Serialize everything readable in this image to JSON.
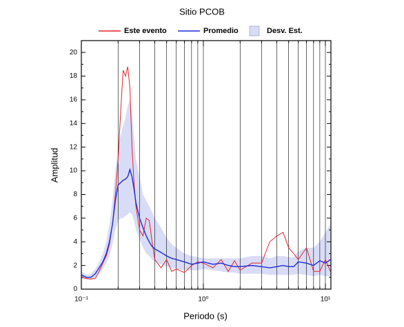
{
  "chart_data": {
    "type": "line",
    "title": "Sitio PCOB",
    "xlabel": "Periodo (s)",
    "ylabel": "Amplitud",
    "xscale": "log",
    "grid": true,
    "legend": "top",
    "xlim": [
      0.1,
      11.1
    ],
    "ylim": [
      0,
      21
    ],
    "xticks": [
      {
        "value": 0.1,
        "label": "10⁻¹"
      },
      {
        "value": 1,
        "label": "10⁰"
      },
      {
        "value": 10,
        "label": "10¹"
      }
    ],
    "xminor_ticks": [
      0.2,
      0.3,
      0.4,
      0.5,
      0.6,
      0.7,
      0.8,
      0.9,
      2,
      3,
      4,
      5,
      6,
      7,
      8,
      9
    ],
    "yticks": [
      0,
      2,
      4,
      6,
      8,
      10,
      12,
      14,
      16,
      18,
      20
    ],
    "yminor_ticks": [
      1,
      3,
      5,
      7,
      9,
      11,
      13,
      15,
      17,
      19
    ],
    "x": [
      0.1,
      0.11,
      0.12,
      0.13,
      0.14,
      0.15,
      0.16,
      0.17,
      0.18,
      0.19,
      0.2,
      0.21,
      0.22,
      0.23,
      0.24,
      0.25,
      0.26,
      0.27,
      0.28,
      0.3,
      0.32,
      0.34,
      0.36,
      0.38,
      0.4,
      0.45,
      0.5,
      0.55,
      0.6,
      0.7,
      0.8,
      0.9,
      1.0,
      1.2,
      1.4,
      1.6,
      1.8,
      2,
      2.5,
      3,
      3.5,
      4,
      4.5,
      5,
      5.5,
      6,
      7,
      8,
      9,
      10,
      11
    ],
    "band": {
      "name": "Desv. Est.",
      "color": "#d9dcf6",
      "upper": [
        1.5,
        1.2,
        1.3,
        1.7,
        2.3,
        3,
        4,
        5.5,
        7.5,
        10,
        12,
        13,
        13.8,
        14.5,
        15.5,
        16,
        15,
        13,
        11,
        9.5,
        8,
        7.5,
        7,
        6.5,
        6,
        5.2,
        4.3,
        3.8,
        3.5,
        3.0,
        2.8,
        2.7,
        2.6,
        2.6,
        2.6,
        2.6,
        2.6,
        2.6,
        2.8,
        2.8,
        2.6,
        2.8,
        2.8,
        2.7,
        2.7,
        3.2,
        3.5,
        3.5,
        4,
        4.8,
        5.5
      ],
      "lower": [
        0.9,
        0.8,
        0.8,
        1.0,
        1.3,
        1.7,
        2.2,
        2.8,
        3.8,
        5,
        5.8,
        6,
        6,
        6.2,
        6.3,
        6.5,
        6.3,
        5.8,
        5,
        4.3,
        3.5,
        3,
        2.8,
        2.5,
        2.3,
        2.1,
        1.9,
        1.8,
        1.7,
        1.6,
        1.6,
        1.6,
        1.7,
        1.6,
        1.5,
        1.4,
        1.4,
        1.3,
        1.3,
        1.3,
        1.2,
        1.2,
        1.2,
        1.2,
        1.2,
        1.3,
        1.2,
        1.1,
        1.2,
        1.1,
        1.1
      ]
    },
    "series": [
      {
        "name": "Este evento",
        "color": "#e8202a",
        "values": [
          1.0,
          0.9,
          0.85,
          0.9,
          1.5,
          2.2,
          2.8,
          3.8,
          5.5,
          8,
          11,
          15,
          18.5,
          18,
          18.8,
          17,
          12,
          9,
          7,
          5,
          4.5,
          6,
          5.8,
          4,
          2.5,
          1.8,
          2.5,
          1.5,
          1.7,
          1.4,
          2,
          2.3,
          2.2,
          1.8,
          2.5,
          1.5,
          2.4,
          1.6,
          2.2,
          2.2,
          4,
          4.5,
          4.8,
          3.5,
          3,
          2.5,
          3.5,
          1.5,
          1.5,
          2.5,
          1.5
        ]
      },
      {
        "name": "Promedio",
        "color": "#1a2bd6",
        "values": [
          1.2,
          1.0,
          1.0,
          1.3,
          1.8,
          2.3,
          3,
          4,
          5.5,
          7.5,
          8.8,
          9,
          9.2,
          9.3,
          9.5,
          10.1,
          9.5,
          8.5,
          7.3,
          6,
          5.2,
          4.5,
          4,
          3.6,
          3.4,
          3.1,
          2.8,
          2.6,
          2.5,
          2.3,
          2.1,
          2.2,
          2.3,
          2.1,
          2.2,
          2,
          1.9,
          1.9,
          2.0,
          1.9,
          1.8,
          1.9,
          2.0,
          1.9,
          1.9,
          2.3,
          2.2,
          2.0,
          2.4,
          2.2,
          2.5
        ]
      }
    ]
  }
}
